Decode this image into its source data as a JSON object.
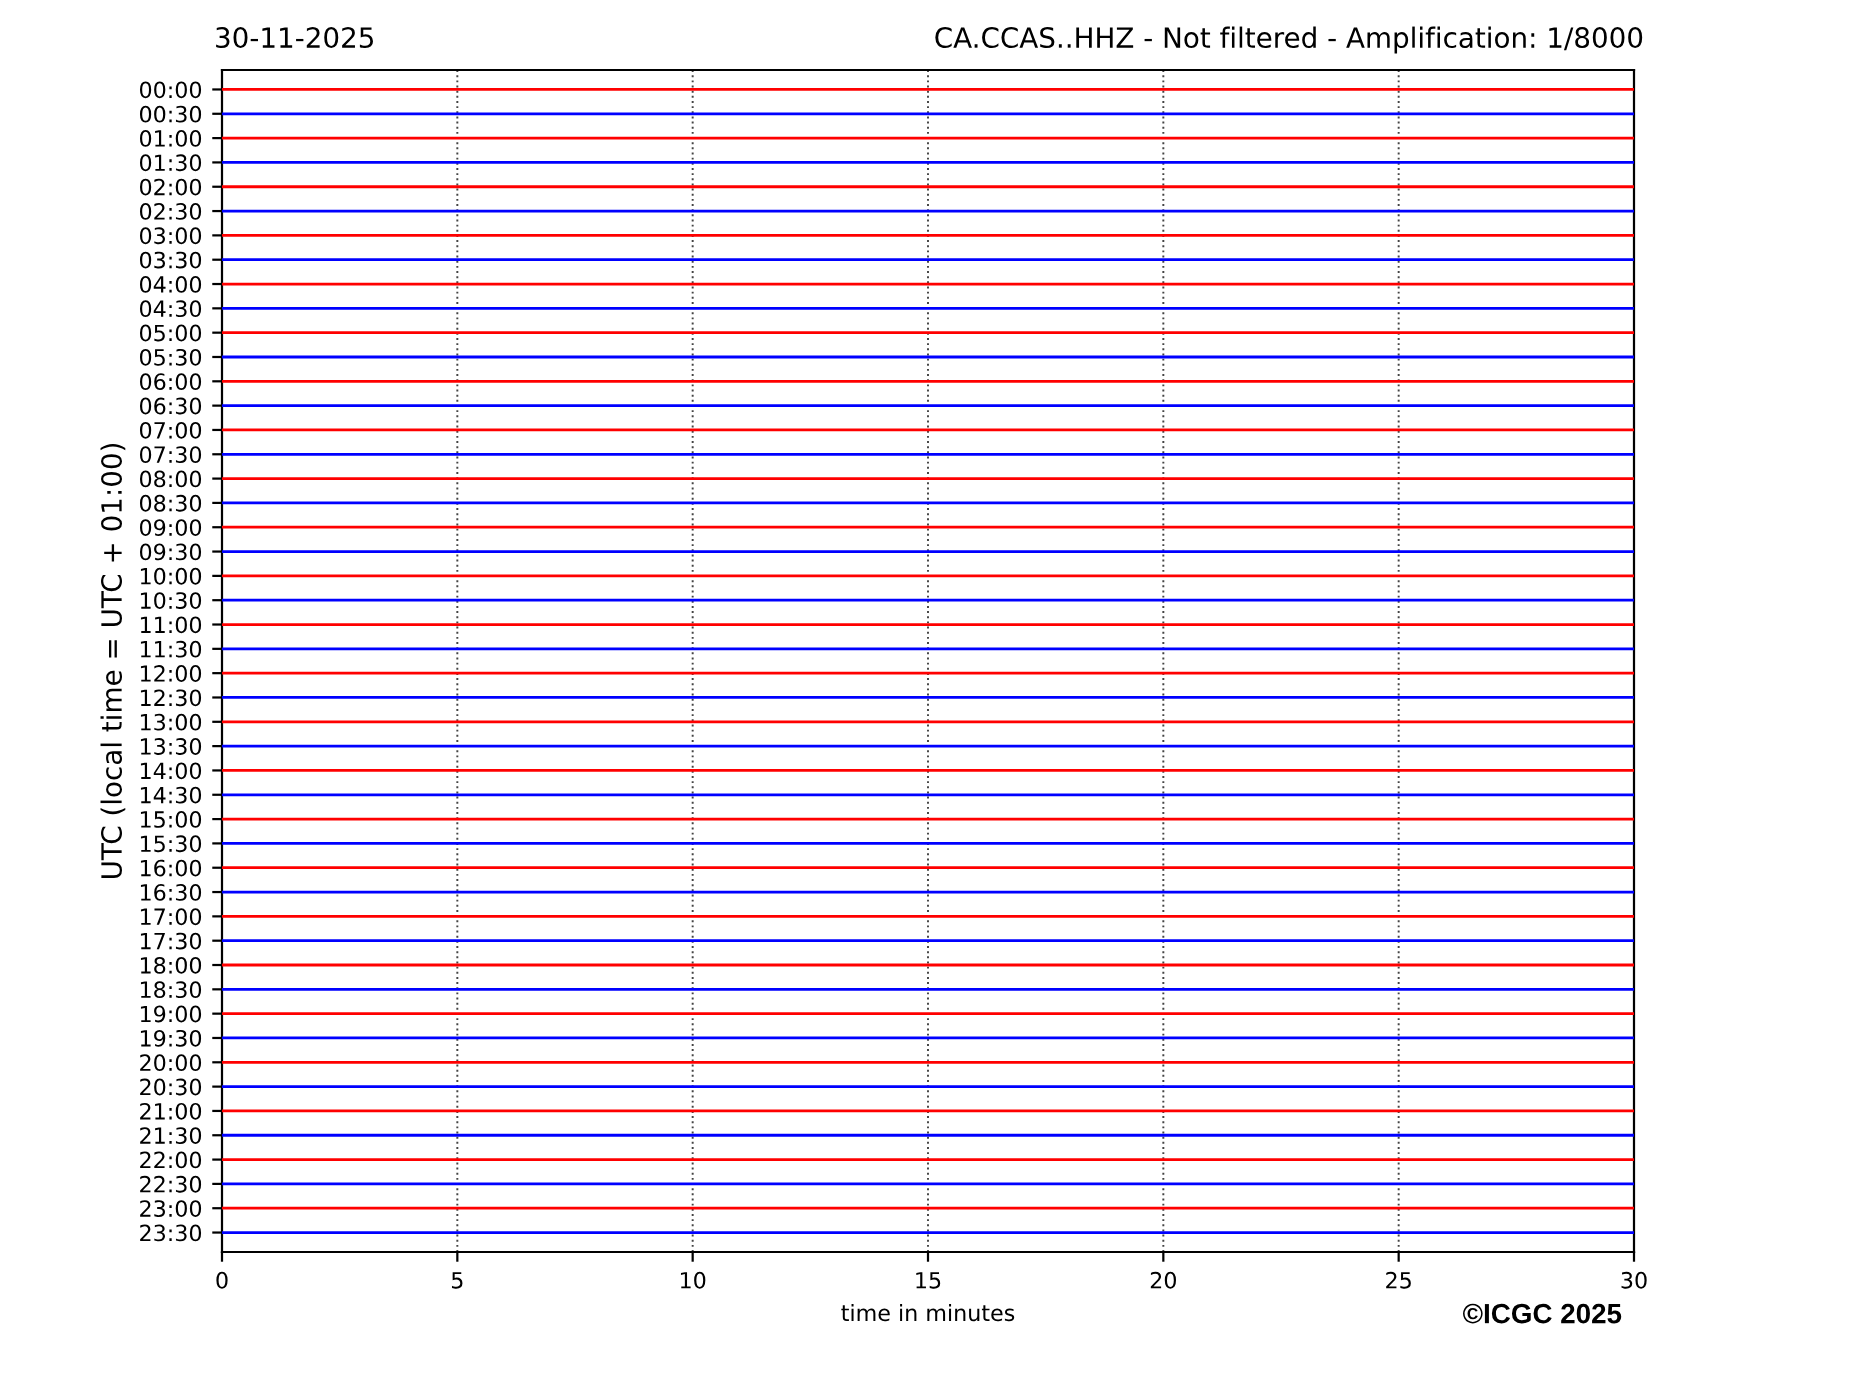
{
  "chart_data": {
    "type": "line",
    "title": "CA.CCAS..HHZ - Not filtered - Amplification: 1/8000",
    "subtitle": "30-11-2025",
    "xlabel": "time in minutes",
    "ylabel": "UTC (local time = UTC + 01:00)",
    "annotations": [
      "©ICGC 2025"
    ],
    "x": [
      0,
      30
    ],
    "xlim": [
      0,
      30
    ],
    "xticks": [
      0,
      5,
      10,
      15,
      20,
      25,
      30
    ],
    "ylim": [
      23.9,
      -0.4
    ],
    "yticks": [
      {
        "value": 0,
        "label": "00:00"
      },
      {
        "value": 0.5,
        "label": "00:30"
      },
      {
        "value": 1,
        "label": "01:00"
      },
      {
        "value": 1.5,
        "label": "01:30"
      },
      {
        "value": 2,
        "label": "02:00"
      },
      {
        "value": 2.5,
        "label": "02:30"
      },
      {
        "value": 3,
        "label": "03:00"
      },
      {
        "value": 3.5,
        "label": "03:30"
      },
      {
        "value": 4,
        "label": "04:00"
      },
      {
        "value": 4.5,
        "label": "04:30"
      },
      {
        "value": 5,
        "label": "05:00"
      },
      {
        "value": 5.5,
        "label": "05:30"
      },
      {
        "value": 6,
        "label": "06:00"
      },
      {
        "value": 6.5,
        "label": "06:30"
      },
      {
        "value": 7,
        "label": "07:00"
      },
      {
        "value": 7.5,
        "label": "07:30"
      },
      {
        "value": 8,
        "label": "08:00"
      },
      {
        "value": 8.5,
        "label": "08:30"
      },
      {
        "value": 9,
        "label": "09:00"
      },
      {
        "value": 9.5,
        "label": "09:30"
      },
      {
        "value": 10,
        "label": "10:00"
      },
      {
        "value": 10.5,
        "label": "10:30"
      },
      {
        "value": 11,
        "label": "11:00"
      },
      {
        "value": 11.5,
        "label": "11:30"
      },
      {
        "value": 12,
        "label": "12:00"
      },
      {
        "value": 12.5,
        "label": "12:30"
      },
      {
        "value": 13,
        "label": "13:00"
      },
      {
        "value": 13.5,
        "label": "13:30"
      },
      {
        "value": 14,
        "label": "14:00"
      },
      {
        "value": 14.5,
        "label": "14:30"
      },
      {
        "value": 15,
        "label": "15:00"
      },
      {
        "value": 15.5,
        "label": "15:30"
      },
      {
        "value": 16,
        "label": "16:00"
      },
      {
        "value": 16.5,
        "label": "16:30"
      },
      {
        "value": 17,
        "label": "17:00"
      },
      {
        "value": 17.5,
        "label": "17:30"
      },
      {
        "value": 18,
        "label": "18:00"
      },
      {
        "value": 18.5,
        "label": "18:30"
      },
      {
        "value": 19,
        "label": "19:00"
      },
      {
        "value": 19.5,
        "label": "19:30"
      },
      {
        "value": 20,
        "label": "20:00"
      },
      {
        "value": 20.5,
        "label": "20:30"
      },
      {
        "value": 21,
        "label": "21:00"
      },
      {
        "value": 21.5,
        "label": "21:30"
      },
      {
        "value": 22,
        "label": "22:00"
      },
      {
        "value": 22.5,
        "label": "22:30"
      },
      {
        "value": 23,
        "label": "23:00"
      },
      {
        "value": 23.5,
        "label": "23:30"
      }
    ],
    "grid": "x",
    "line_style": "solid",
    "marker": "none",
    "series": [
      {
        "color": "#ff0000",
        "values": [
          0,
          0
        ]
      },
      {
        "color": "#0000ff",
        "values": [
          0.5,
          0.5
        ]
      },
      {
        "color": "#ff0000",
        "values": [
          1,
          1
        ]
      },
      {
        "color": "#0000ff",
        "values": [
          1.5,
          1.5
        ]
      },
      {
        "color": "#ff0000",
        "values": [
          2,
          2
        ]
      },
      {
        "color": "#0000ff",
        "values": [
          2.5,
          2.5
        ]
      },
      {
        "color": "#ff0000",
        "values": [
          3,
          3
        ]
      },
      {
        "color": "#0000ff",
        "values": [
          3.5,
          3.5
        ]
      },
      {
        "color": "#ff0000",
        "values": [
          4,
          4
        ]
      },
      {
        "color": "#0000ff",
        "values": [
          4.5,
          4.5
        ]
      },
      {
        "color": "#ff0000",
        "values": [
          5,
          5
        ]
      },
      {
        "color": "#0000ff",
        "values": [
          5.5,
          5.5
        ]
      },
      {
        "color": "#ff0000",
        "values": [
          6,
          6
        ]
      },
      {
        "color": "#0000ff",
        "values": [
          6.5,
          6.5
        ]
      },
      {
        "color": "#ff0000",
        "values": [
          7,
          7
        ]
      },
      {
        "color": "#0000ff",
        "values": [
          7.5,
          7.5
        ]
      },
      {
        "color": "#ff0000",
        "values": [
          8,
          8
        ]
      },
      {
        "color": "#0000ff",
        "values": [
          8.5,
          8.5
        ]
      },
      {
        "color": "#ff0000",
        "values": [
          9,
          9
        ]
      },
      {
        "color": "#0000ff",
        "values": [
          9.5,
          9.5
        ]
      },
      {
        "color": "#ff0000",
        "values": [
          10,
          10
        ]
      },
      {
        "color": "#0000ff",
        "values": [
          10.5,
          10.5
        ]
      },
      {
        "color": "#ff0000",
        "values": [
          11,
          11
        ]
      },
      {
        "color": "#0000ff",
        "values": [
          11.5,
          11.5
        ]
      },
      {
        "color": "#ff0000",
        "values": [
          12,
          12
        ]
      },
      {
        "color": "#0000ff",
        "values": [
          12.5,
          12.5
        ]
      },
      {
        "color": "#ff0000",
        "values": [
          13,
          13
        ]
      },
      {
        "color": "#0000ff",
        "values": [
          13.5,
          13.5
        ]
      },
      {
        "color": "#ff0000",
        "values": [
          14,
          14
        ]
      },
      {
        "color": "#0000ff",
        "values": [
          14.5,
          14.5
        ]
      },
      {
        "color": "#ff0000",
        "values": [
          15,
          15
        ]
      },
      {
        "color": "#0000ff",
        "values": [
          15.5,
          15.5
        ]
      },
      {
        "color": "#ff0000",
        "values": [
          16,
          16
        ]
      },
      {
        "color": "#0000ff",
        "values": [
          16.5,
          16.5
        ]
      },
      {
        "color": "#ff0000",
        "values": [
          17,
          17
        ]
      },
      {
        "color": "#0000ff",
        "values": [
          17.5,
          17.5
        ]
      },
      {
        "color": "#ff0000",
        "values": [
          18,
          18
        ]
      },
      {
        "color": "#0000ff",
        "values": [
          18.5,
          18.5
        ]
      },
      {
        "color": "#ff0000",
        "values": [
          19,
          19
        ]
      },
      {
        "color": "#0000ff",
        "values": [
          19.5,
          19.5
        ]
      },
      {
        "color": "#ff0000",
        "values": [
          20,
          20
        ]
      },
      {
        "color": "#0000ff",
        "values": [
          20.5,
          20.5
        ]
      },
      {
        "color": "#ff0000",
        "values": [
          21,
          21
        ]
      },
      {
        "color": "#0000ff",
        "values": [
          21.5,
          21.5
        ]
      },
      {
        "color": "#ff0000",
        "values": [
          22,
          22
        ]
      },
      {
        "color": "#0000ff",
        "values": [
          22.5,
          22.5
        ]
      },
      {
        "color": "#ff0000",
        "values": [
          23,
          23
        ]
      },
      {
        "color": "#0000ff",
        "values": [
          23.5,
          23.5
        ]
      }
    ]
  }
}
